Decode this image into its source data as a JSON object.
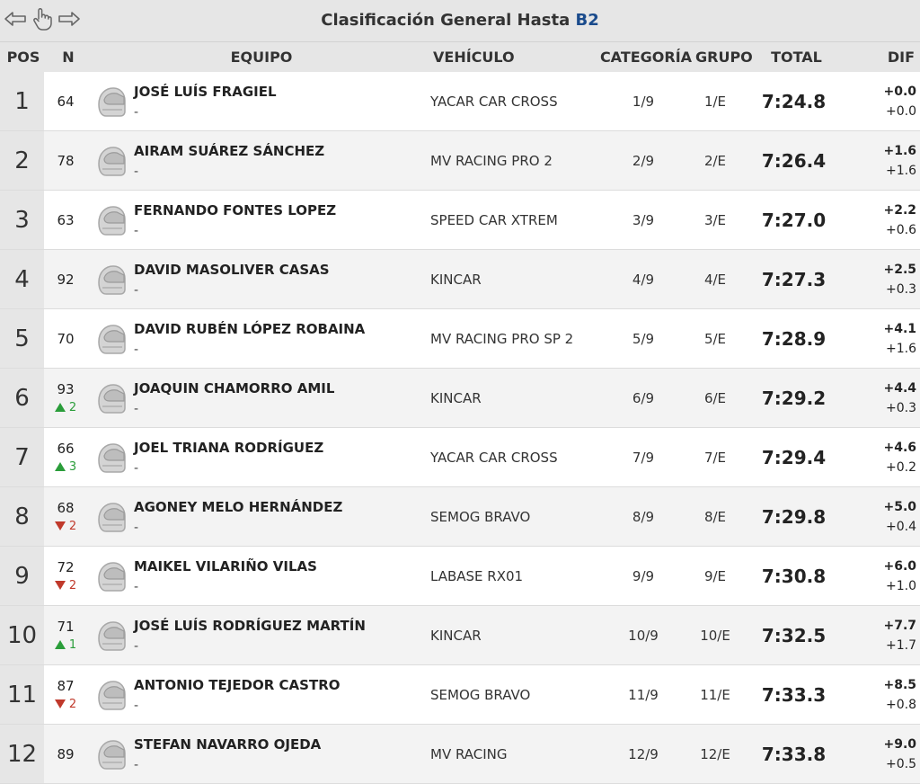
{
  "page": {
    "title_prefix": "Clasificación General Hasta",
    "title_highlight": "B2"
  },
  "header": {
    "pos": "POS",
    "num": "N",
    "team": "EQUIPO",
    "vehicle": "VEHÍCULO",
    "category": "CATEGORÍA",
    "group": "GRUPO",
    "total": "TOTAL",
    "dif": "DIF"
  },
  "rows": [
    {
      "pos": "1",
      "num": "64",
      "change": "",
      "dir": "",
      "name": "JOSÉ LUÍS FRAGIEL",
      "sub": "-",
      "vehicle": "YACAR CAR CROSS",
      "cat": "1/9",
      "grp": "1/E",
      "total": "7:24.8",
      "dif1": "+0.0",
      "dif2": "+0.0"
    },
    {
      "pos": "2",
      "num": "78",
      "change": "",
      "dir": "",
      "name": "AIRAM SUÁREZ SÁNCHEZ",
      "sub": "-",
      "vehicle": "MV RACING PRO 2",
      "cat": "2/9",
      "grp": "2/E",
      "total": "7:26.4",
      "dif1": "+1.6",
      "dif2": "+1.6"
    },
    {
      "pos": "3",
      "num": "63",
      "change": "",
      "dir": "",
      "name": "FERNANDO FONTES LOPEZ",
      "sub": "-",
      "vehicle": "SPEED CAR XTREM",
      "cat": "3/9",
      "grp": "3/E",
      "total": "7:27.0",
      "dif1": "+2.2",
      "dif2": "+0.6"
    },
    {
      "pos": "4",
      "num": "92",
      "change": "",
      "dir": "",
      "name": "DAVID MASOLIVER CASAS",
      "sub": "-",
      "vehicle": "KINCAR",
      "cat": "4/9",
      "grp": "4/E",
      "total": "7:27.3",
      "dif1": "+2.5",
      "dif2": "+0.3"
    },
    {
      "pos": "5",
      "num": "70",
      "change": "",
      "dir": "",
      "name": "DAVID RUBÉN LÓPEZ ROBAINA",
      "sub": "-",
      "vehicle": "MV RACING PRO SP 2",
      "cat": "5/9",
      "grp": "5/E",
      "total": "7:28.9",
      "dif1": "+4.1",
      "dif2": "+1.6"
    },
    {
      "pos": "6",
      "num": "93",
      "change": "2",
      "dir": "up",
      "name": "JOAQUIN CHAMORRO AMIL",
      "sub": "-",
      "vehicle": "KINCAR",
      "cat": "6/9",
      "grp": "6/E",
      "total": "7:29.2",
      "dif1": "+4.4",
      "dif2": "+0.3"
    },
    {
      "pos": "7",
      "num": "66",
      "change": "3",
      "dir": "up",
      "name": "JOEL TRIANA RODRÍGUEZ",
      "sub": "-",
      "vehicle": "YACAR CAR CROSS",
      "cat": "7/9",
      "grp": "7/E",
      "total": "7:29.4",
      "dif1": "+4.6",
      "dif2": "+0.2"
    },
    {
      "pos": "8",
      "num": "68",
      "change": "2",
      "dir": "down",
      "name": "AGONEY MELO HERNÁNDEZ",
      "sub": "-",
      "vehicle": "SEMOG BRAVO",
      "cat": "8/9",
      "grp": "8/E",
      "total": "7:29.8",
      "dif1": "+5.0",
      "dif2": "+0.4"
    },
    {
      "pos": "9",
      "num": "72",
      "change": "2",
      "dir": "down",
      "name": "MAIKEL VILARIÑO VILAS",
      "sub": "-",
      "vehicle": "LABASE RX01",
      "cat": "9/9",
      "grp": "9/E",
      "total": "7:30.8",
      "dif1": "+6.0",
      "dif2": "+1.0"
    },
    {
      "pos": "10",
      "num": "71",
      "change": "1",
      "dir": "up",
      "name": "JOSÉ LUÍS RODRÍGUEZ MARTÍN",
      "sub": "-",
      "vehicle": "KINCAR",
      "cat": "10/9",
      "grp": "10/E",
      "total": "7:32.5",
      "dif1": "+7.7",
      "dif2": "+1.7"
    },
    {
      "pos": "11",
      "num": "87",
      "change": "2",
      "dir": "down",
      "name": "ANTONIO TEJEDOR CASTRO",
      "sub": "-",
      "vehicle": "SEMOG BRAVO",
      "cat": "11/9",
      "grp": "11/E",
      "total": "7:33.3",
      "dif1": "+8.5",
      "dif2": "+0.8"
    },
    {
      "pos": "12",
      "num": "89",
      "change": "",
      "dir": "",
      "name": "STEFAN NAVARRO OJEDA",
      "sub": "-",
      "vehicle": "MV RACING",
      "cat": "12/9",
      "grp": "12/E",
      "total": "7:33.8",
      "dif1": "+9.0",
      "dif2": "+0.5"
    }
  ],
  "colors": {
    "up": "#2a9d3a",
    "down": "#c0392b",
    "highlight": "#1a4b8c"
  },
  "icons": {
    "back": "arrow-left-icon",
    "pointer": "hand-pointer-icon",
    "forward": "arrow-right-icon",
    "helmet": "helmet-icon",
    "up": "triangle-up-icon",
    "down": "triangle-down-icon"
  }
}
